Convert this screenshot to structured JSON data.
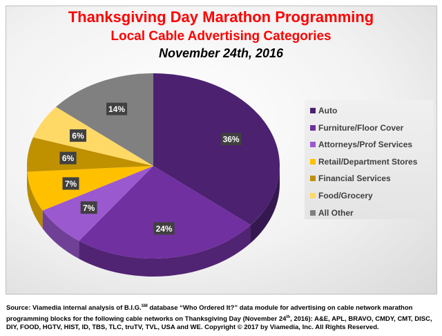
{
  "chart_data": {
    "type": "pie",
    "title": "Thanksgiving Day Marathon Programming",
    "subtitle": "Local Cable Advertising Categories",
    "date": "November 24th, 2016",
    "legend_position": "right",
    "categories": [
      "Auto",
      "Furniture/Floor Cover",
      "Attorneys/Prof Services",
      "Retail/Department Stores",
      "Financial Services",
      "Food/Grocery",
      "All Other"
    ],
    "values": [
      36,
      24,
      7,
      7,
      6,
      6,
      14
    ],
    "labels": [
      "36%",
      "24%",
      "7%",
      "7%",
      "6%",
      "6%",
      "14%"
    ],
    "colors": [
      "#4b2170",
      "#7030a0",
      "#9b59d0",
      "#ffc000",
      "#bf9000",
      "#ffd966",
      "#808080"
    ]
  },
  "source": {
    "prefix": "Source: Viamedia internal analysis of B.I.G.",
    "sm": "SM",
    "line_a": " database “Who Ordered It?” data module for advertising on cable network marathon programming blocks for the following cable networks on Thanksgiving Day (November 24",
    "th": "th",
    "line_b": ", 2016): A&E, APL, BRAVO, CMDY, CMT, DISC, DIY, FOOD, HGTV, HIST, ID, TBS, TLC, truTV, TVL, USA and WE. Copyright © 2017 by Viamedia, Inc. All Rights Reserved."
  }
}
